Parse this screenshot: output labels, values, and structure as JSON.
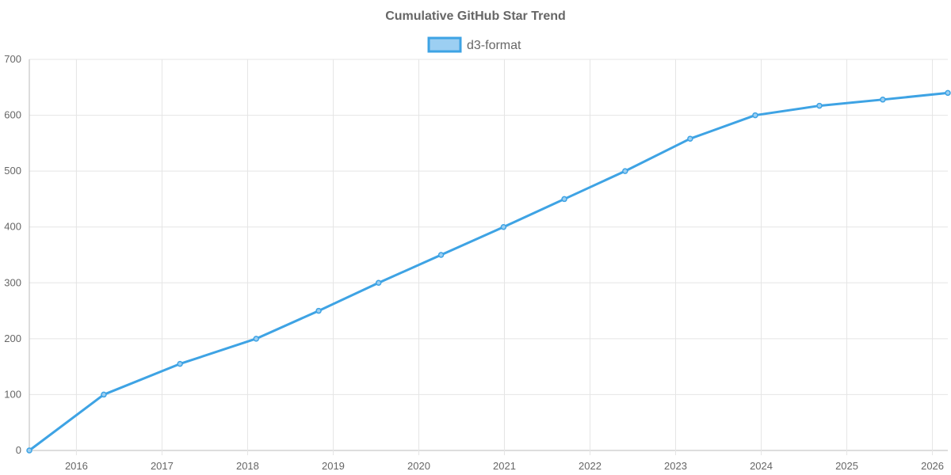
{
  "chart_data": {
    "type": "line",
    "title": "Cumulative GitHub Star Trend",
    "xlabel": "",
    "ylabel": "",
    "x_axis": {
      "min": 2015.45,
      "max": 2026.18,
      "ticks": [
        "2016",
        "2017",
        "2018",
        "2019",
        "2020",
        "2021",
        "2022",
        "2023",
        "2024",
        "2025",
        "2026"
      ]
    },
    "ylim": [
      0,
      700
    ],
    "y_ticks": [
      "0",
      "100",
      "200",
      "300",
      "400",
      "500",
      "600",
      "700"
    ],
    "grid": true,
    "legend_position": "top-center",
    "series": [
      {
        "name": "d3-format",
        "color": "#3ea3e4",
        "fill": "#9ccff2",
        "points": [
          {
            "x": 2015.45,
            "y": 0
          },
          {
            "x": 2016.32,
            "y": 100
          },
          {
            "x": 2017.21,
            "y": 155
          },
          {
            "x": 2018.1,
            "y": 200
          },
          {
            "x": 2018.83,
            "y": 250
          },
          {
            "x": 2019.53,
            "y": 300
          },
          {
            "x": 2020.26,
            "y": 350
          },
          {
            "x": 2020.99,
            "y": 400
          },
          {
            "x": 2021.7,
            "y": 450
          },
          {
            "x": 2022.41,
            "y": 500
          },
          {
            "x": 2023.17,
            "y": 558
          },
          {
            "x": 2023.93,
            "y": 600
          },
          {
            "x": 2024.68,
            "y": 617
          },
          {
            "x": 2025.42,
            "y": 628
          },
          {
            "x": 2026.18,
            "y": 640
          }
        ]
      }
    ]
  }
}
